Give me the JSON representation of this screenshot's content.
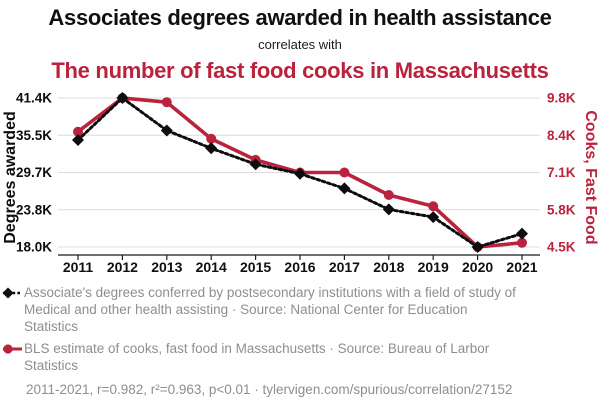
{
  "header": {
    "title": "Associates degrees awarded in health assistance",
    "subtitle": "correlates with",
    "title2": "The number of fast food cooks in Massachusetts"
  },
  "colors": {
    "accent_red": "#b9233d",
    "black": "#0d0d0f",
    "grid": "#dcdcdc",
    "axis": "#1a1a1a",
    "legend_text": "#8e8e8e"
  },
  "chart_data": {
    "type": "line",
    "title": "Associates degrees awarded in health assistance correlates with The number of fast food cooks in Massachusetts",
    "x": [
      "2011",
      "2012",
      "2013",
      "2014",
      "2015",
      "2016",
      "2017",
      "2018",
      "2019",
      "2020",
      "2021"
    ],
    "grid": "horizontal",
    "legend_position": "bottom",
    "left_axis": {
      "label": "Degrees awarded",
      "color": "#0d0d0f",
      "tick_labels": [
        "41.4K",
        "35.5K",
        "29.7K",
        "23.8K",
        "18.0K"
      ],
      "scale": [
        41400,
        18000
      ]
    },
    "right_axis": {
      "label": "Cooks, Fast Food",
      "color": "#b9233d",
      "tick_labels": [
        "9.8K",
        "8.4K",
        "7.1K",
        "5.8K",
        "4.5K"
      ],
      "scale": [
        9800,
        4500
      ]
    },
    "series": [
      {
        "id": "degrees",
        "name": "Associate's degrees in Medical and other health assisting",
        "axis": "left",
        "color": "#0d0d0f",
        "marker": "diamond",
        "line_style": "dashed",
        "values": [
          34800,
          41400,
          36300,
          33500,
          31000,
          29500,
          27200,
          23900,
          22700,
          18000,
          20100
        ]
      },
      {
        "id": "cooks",
        "name": "Cooks, fast food in Massachusetts",
        "axis": "right",
        "color": "#b9233d",
        "marker": "circle",
        "line_style": "solid",
        "values": [
          8600,
          9800,
          9650,
          8350,
          7600,
          7150,
          7150,
          6350,
          5950,
          4500,
          4650
        ]
      }
    ]
  },
  "legend": [
    {
      "marker": "black-diamond-dashed-line",
      "text": "Associate's degrees conferred by postsecondary institutions with a field of study of Medical and other health assisting · Source: National Center for Education Statistics"
    },
    {
      "marker": "red-circle-solid-line",
      "text": "BLS estimate of cooks, fast food in Massachusetts · Source: Bureau of Larbor Statistics"
    }
  ],
  "footer": {
    "stats": "2011-2021, r=0.982, r²=0.963, p<0.01 · tylervigen.com/spurious/correlation/27152"
  }
}
